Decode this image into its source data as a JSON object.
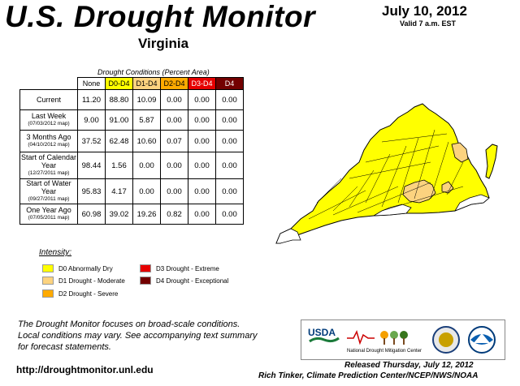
{
  "header": {
    "title": "U.S. Drought Monitor",
    "state": "Virginia",
    "date": "July 10, 2012",
    "valid": "Valid 7 a.m. EST"
  },
  "table": {
    "caption": "Drought Conditions (Percent Area)",
    "columns": [
      "None",
      "D0-D4",
      "D1-D4",
      "D2-D4",
      "D3-D4",
      "D4"
    ],
    "column_colors": [
      "#ffffff",
      "#ffff00",
      "#fcd37f",
      "#ffaa00",
      "#e60000",
      "#730000"
    ],
    "rows": [
      {
        "label": "Current",
        "sublabel": "",
        "values": [
          "11.20",
          "88.80",
          "10.09",
          "0.00",
          "0.00",
          "0.00"
        ]
      },
      {
        "label": "Last Week",
        "sublabel": "(07/03/2012 map)",
        "values": [
          "9.00",
          "91.00",
          "5.87",
          "0.00",
          "0.00",
          "0.00"
        ]
      },
      {
        "label": "3 Months Ago",
        "sublabel": "(04/10/2012 map)",
        "values": [
          "37.52",
          "62.48",
          "10.60",
          "0.07",
          "0.00",
          "0.00"
        ]
      },
      {
        "label": "Start of Calendar Year",
        "sublabel": "(12/27/2011 map)",
        "values": [
          "98.44",
          "1.56",
          "0.00",
          "0.00",
          "0.00",
          "0.00"
        ]
      },
      {
        "label": "Start of Water Year",
        "sublabel": "(09/27/2011 map)",
        "values": [
          "95.83",
          "4.17",
          "0.00",
          "0.00",
          "0.00",
          "0.00"
        ]
      },
      {
        "label": "One Year Ago",
        "sublabel": "(07/05/2011 map)",
        "values": [
          "60.98",
          "39.02",
          "19.26",
          "0.82",
          "0.00",
          "0.00"
        ]
      }
    ]
  },
  "legend": {
    "title": "Intensity:",
    "items": [
      {
        "label": "D0 Abnormally Dry",
        "color": "#ffff00"
      },
      {
        "label": "D1 Drought - Moderate",
        "color": "#fcd37f"
      },
      {
        "label": "D2 Drought - Severe",
        "color": "#ffaa00"
      },
      {
        "label": "D3 Drought - Extreme",
        "color": "#e60000"
      },
      {
        "label": "D4 Drought - Exceptional",
        "color": "#730000"
      }
    ]
  },
  "footer": {
    "notice": "The Drought Monitor focuses on broad-scale conditions. Local conditions may vary. See accompanying text summary for forecast statements.",
    "url": "http://droughtmonitor.unl.edu",
    "released": "Released Thursday, July 12, 2012",
    "author": "Rich Tinker, Climate Prediction Center/NCEP/NWS/NOAA"
  },
  "logos": {
    "usda": "USDA",
    "ndmc": "National Drought Mitigation Center"
  },
  "map": {
    "region": "Virginia",
    "fill_none": "#ffffff",
    "fill_d0": "#ffff00",
    "fill_d1": "#fcd37f",
    "boundary_color": "#000000"
  }
}
